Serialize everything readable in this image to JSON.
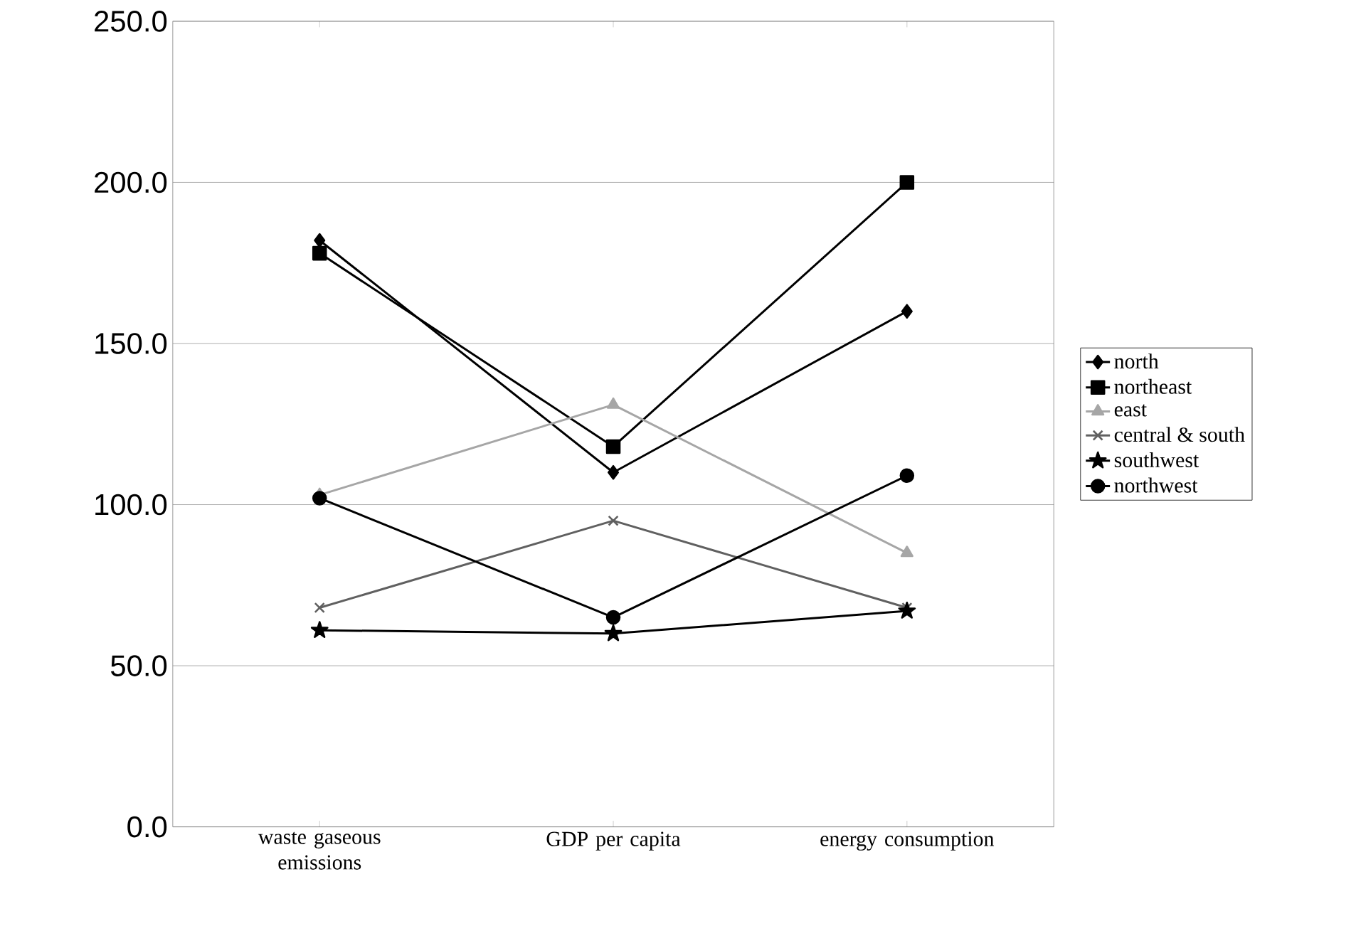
{
  "chart_data": {
    "type": "line",
    "categories": [
      "waste gaseous emissions",
      "GDP per capita",
      "energy consumption"
    ],
    "series": [
      {
        "name": "north",
        "color": "#000000",
        "marker": "diamond",
        "values": [
          182,
          110,
          160
        ]
      },
      {
        "name": "northeast",
        "color": "#000000",
        "marker": "square",
        "values": [
          178,
          118,
          200
        ]
      },
      {
        "name": "east",
        "color": "#a6a6a6",
        "marker": "triangle",
        "values": [
          103,
          131,
          85
        ]
      },
      {
        "name": "central & south",
        "color": "#606060",
        "marker": "cross",
        "values": [
          68,
          95,
          68
        ]
      },
      {
        "name": "southwest",
        "color": "#000000",
        "marker": "star",
        "values": [
          61,
          60,
          67
        ]
      },
      {
        "name": "northwest",
        "color": "#000000",
        "marker": "circle",
        "values": [
          102,
          65,
          109
        ]
      }
    ],
    "ylim": [
      0,
      250
    ],
    "yticks": [
      {
        "value": 0,
        "label": "0.0"
      },
      {
        "value": 50,
        "label": "50.0"
      },
      {
        "value": 100,
        "label": "100.0"
      },
      {
        "value": 150,
        "label": "150.0"
      },
      {
        "value": 200,
        "label": "200.0"
      },
      {
        "value": 250,
        "label": "250.0"
      }
    ],
    "grid": "y",
    "legend": "right",
    "line_style": "solid"
  }
}
